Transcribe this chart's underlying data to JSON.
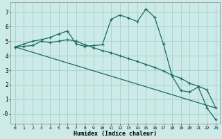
{
  "xlabel": "Humidex (Indice chaleur)",
  "background_color": "#cceae7",
  "grid_color": "#aad4d0",
  "line_color": "#1a6b5e",
  "x_ticks": [
    0,
    1,
    2,
    3,
    4,
    5,
    6,
    7,
    8,
    9,
    10,
    11,
    12,
    13,
    14,
    15,
    16,
    17,
    18,
    19,
    20,
    21,
    22,
    23
  ],
  "y_ticks": [
    0,
    1,
    2,
    3,
    4,
    5,
    6,
    7
  ],
  "y_tick_labels": [
    "-0",
    "1",
    "2",
    "3",
    "4",
    "5",
    "6",
    "7"
  ],
  "ylim": [
    -0.7,
    7.7
  ],
  "xlim": [
    -0.5,
    23.5
  ],
  "line1_x": [
    0,
    1,
    2,
    3,
    4,
    5,
    6,
    7,
    8,
    9,
    10,
    11,
    12,
    13,
    14,
    15,
    16,
    17,
    18,
    19,
    20,
    21,
    22,
    23
  ],
  "line1_y": [
    4.6,
    4.8,
    5.0,
    5.1,
    5.25,
    5.5,
    5.7,
    4.8,
    4.65,
    4.7,
    4.75,
    6.5,
    6.8,
    6.6,
    6.35,
    7.2,
    6.65,
    4.8,
    2.6,
    1.6,
    1.5,
    1.85,
    0.4,
    -0.4
  ],
  "line2_x": [
    0,
    1,
    2,
    3,
    4,
    5,
    6,
    7,
    8,
    9,
    10,
    11,
    12,
    13,
    14,
    15,
    16,
    17,
    18,
    19,
    20,
    21,
    22,
    23
  ],
  "line2_y": [
    4.6,
    4.65,
    4.7,
    5.0,
    4.9,
    5.0,
    5.1,
    5.0,
    4.75,
    4.55,
    4.35,
    4.2,
    4.0,
    3.8,
    3.6,
    3.4,
    3.2,
    2.95,
    2.65,
    2.45,
    2.1,
    1.9,
    1.65,
    0.4
  ],
  "line3_x": [
    0,
    23
  ],
  "line3_y": [
    4.6,
    0.4
  ]
}
